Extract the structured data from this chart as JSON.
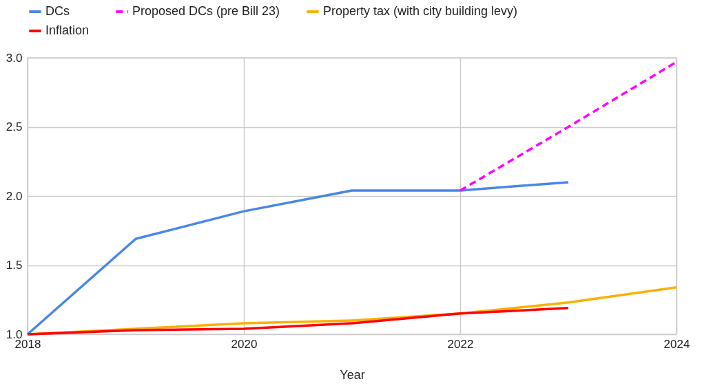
{
  "chart_data": {
    "type": "line",
    "xlabel": "Year",
    "legend": "top",
    "grid": true,
    "marker": "none",
    "xlim": [
      2018,
      2024
    ],
    "xticks": [
      2018,
      2020,
      2022,
      2024
    ],
    "ylim": [
      1,
      3
    ],
    "yticks": [
      {
        "value": 1,
        "label": "1.0"
      },
      {
        "value": 1.5,
        "label": "1.5"
      },
      {
        "value": 2,
        "label": "2.0"
      },
      {
        "value": 2.5,
        "label": "2.5"
      },
      {
        "value": 3,
        "label": "3.0"
      }
    ],
    "series": [
      {
        "name": "DCs",
        "color": "#4a86e8",
        "line_style": "solid",
        "x": [
          2018,
          2019,
          2020,
          2021,
          2022,
          2023
        ],
        "values": [
          1.0,
          1.69,
          1.89,
          2.04,
          2.04,
          2.1
        ]
      },
      {
        "name": "Proposed DCs (pre Bill 23)",
        "color": "#ff00ff",
        "line_style": "dashed",
        "x": [
          2022,
          2023,
          2024
        ],
        "values": [
          2.04,
          2.5,
          2.97
        ]
      },
      {
        "name": "Property tax (with city building levy)",
        "color": "#f9b000",
        "line_style": "solid",
        "x": [
          2018,
          2019,
          2020,
          2021,
          2022,
          2023,
          2024
        ],
        "values": [
          1.0,
          1.04,
          1.08,
          1.1,
          1.15,
          1.23,
          1.34
        ]
      },
      {
        "name": "Inflation",
        "color": "#ff0000",
        "line_style": "solid",
        "x": [
          2018,
          2019,
          2020,
          2021,
          2022,
          2023
        ],
        "values": [
          1.0,
          1.03,
          1.04,
          1.08,
          1.15,
          1.19
        ]
      }
    ]
  }
}
